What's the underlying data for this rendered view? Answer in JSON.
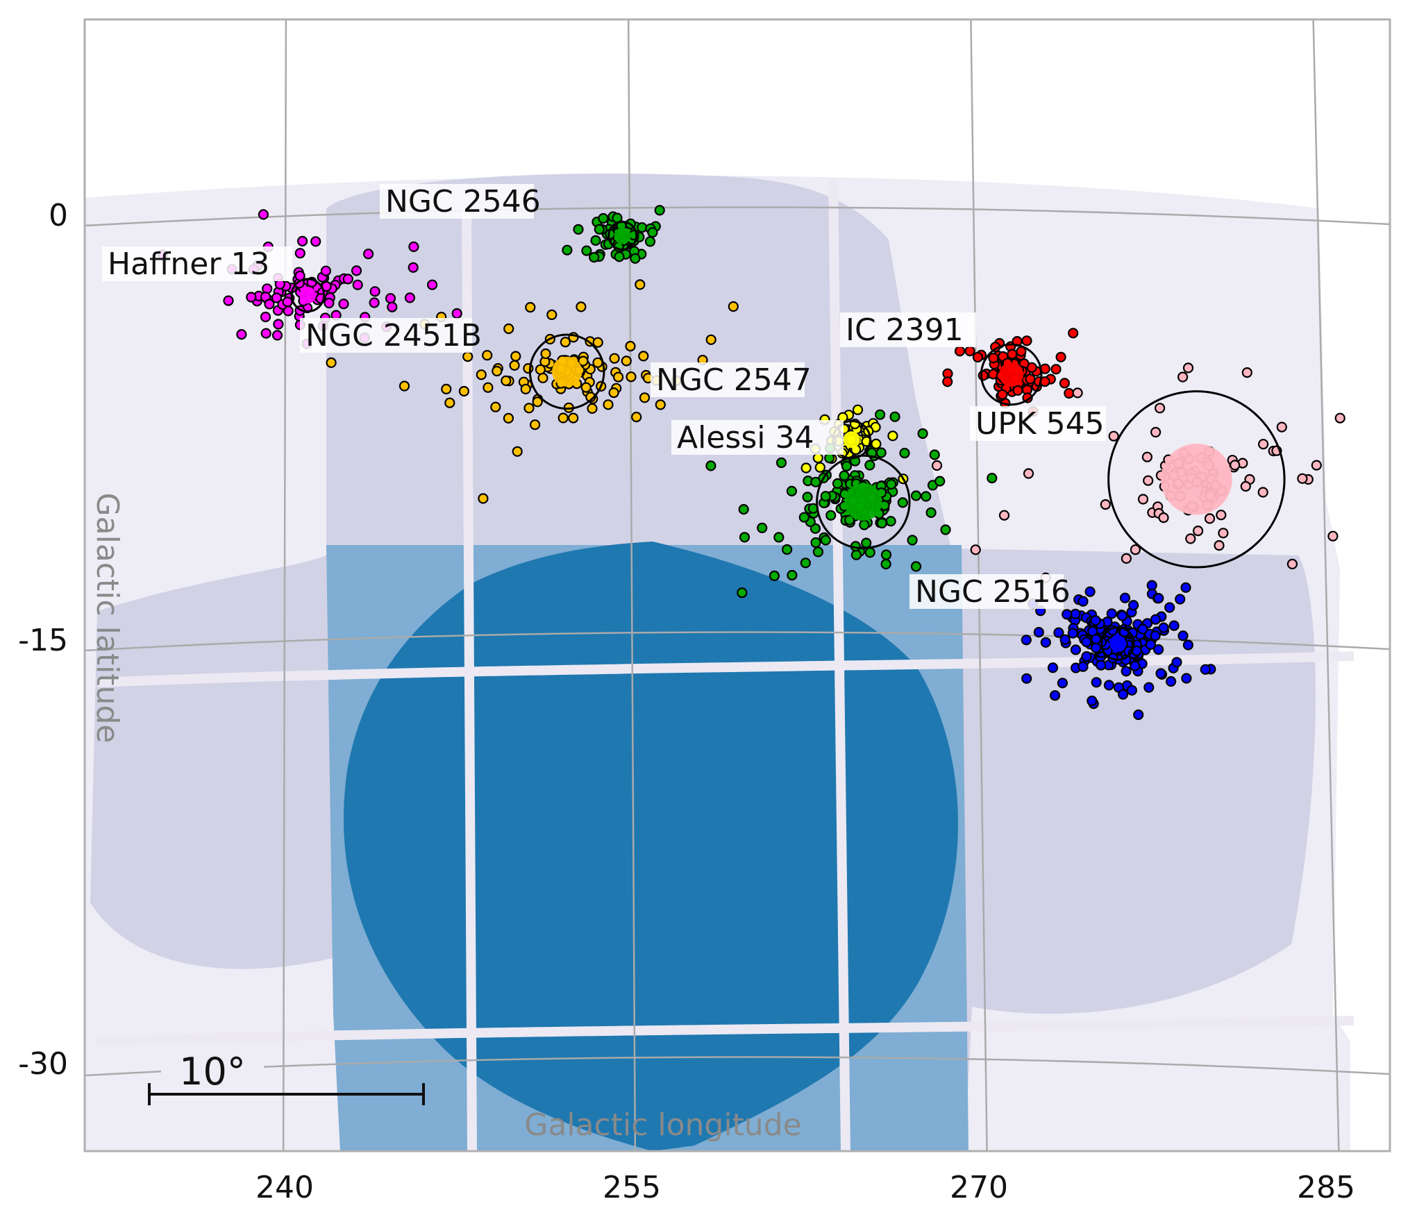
{
  "chart_data": {
    "type": "scatter",
    "title": "",
    "xlabel": "Galactic longitude",
    "ylabel": "Galactic latitude",
    "x_ticks": [
      "240",
      "255",
      "270",
      "285"
    ],
    "y_ticks": [
      "0",
      "-15",
      "-30"
    ],
    "xlim": [
      230,
      287
    ],
    "ylim": [
      -35,
      6
    ],
    "scale_bar": "10°",
    "grid": true,
    "background": {
      "description_colors": {
        "outer": "#eeecf5",
        "survey_light": "#d2d2e6",
        "survey_mid": "#7fadd3",
        "survey_dark": "#1f78b0"
      }
    },
    "clusters": [
      {
        "name": "Haffner 13",
        "color": "#ff00ff",
        "center": [
          241.0,
          -2.7
        ],
        "radius": 0.7,
        "n": 90,
        "spread": 1.9
      },
      {
        "name": "NGC 2546",
        "color": "#00aa00",
        "center": [
          254.6,
          -0.6
        ],
        "radius": 0.6,
        "n": 80,
        "spread": 1.0
      },
      {
        "name": "NGC 2451B",
        "color": "#ffc000",
        "center": [
          252.2,
          -5.4
        ],
        "radius": 1.6,
        "n": 110,
        "spread": 2.2
      },
      {
        "name": "NGC 2547",
        "color": "#ffff00",
        "center": [
          264.5,
          -7.8
        ],
        "radius": 0.8,
        "n": 60,
        "spread": 0.9
      },
      {
        "name": "Alessi 34",
        "color": "#00aa00",
        "center": [
          265.0,
          -10.0
        ],
        "radius": 2.0,
        "n": 170,
        "spread": 2.1
      },
      {
        "name": "IC 2391",
        "color": "#ff0000",
        "center": [
          271.4,
          -5.5
        ],
        "radius": 1.3,
        "n": 110,
        "spread": 1.2
      },
      {
        "name": "UPK 545",
        "color": "#ffb6c1",
        "center": [
          279.4,
          -9.2
        ],
        "radius": 3.8,
        "n": 90,
        "spread": 3.5
      },
      {
        "name": "NGC 2516",
        "color": "#0000ff",
        "center": [
          276.0,
          -15.0
        ],
        "radius": 0.7,
        "n": 260,
        "spread": 1.6
      }
    ]
  }
}
